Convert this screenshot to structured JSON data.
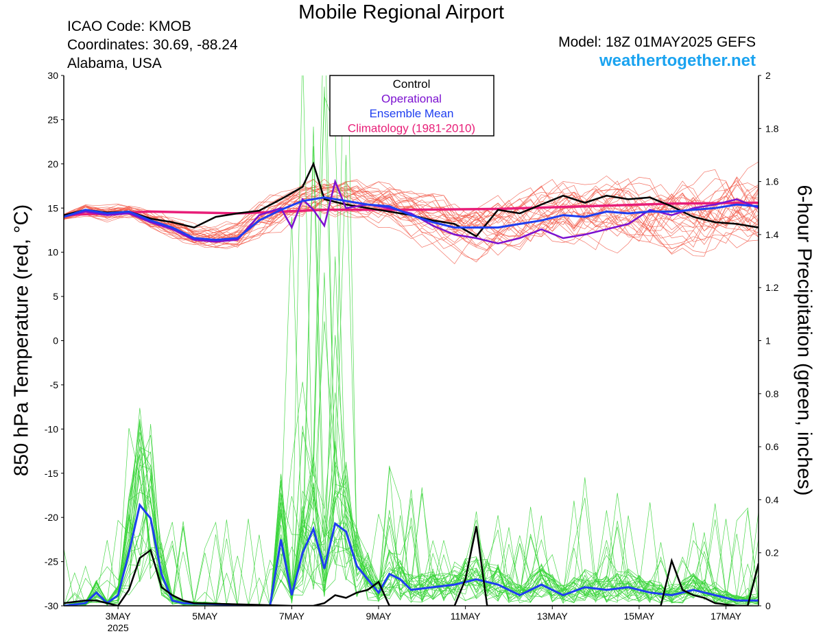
{
  "header": {
    "title": "Mobile Regional Airport",
    "icao": "ICAO Code: KMOB",
    "coords": "Coordinates: 30.69, -88.24",
    "region": "Alabama, USA",
    "model": "Model: 18Z 01MAY2025 GEFS",
    "site": "weathertogether.net"
  },
  "colors": {
    "ensemble_temp": "#f25a4a",
    "ensemble_precip": "#36d436",
    "control": "#000000",
    "operational": "#7b10d0",
    "mean": "#1e3ef0",
    "climatology": "#e81e78",
    "site": "#1aa3f0"
  },
  "chart_data": {
    "type": "line",
    "title": "Mobile Regional Airport",
    "ylabel": "850 hPa Temperature (red, °C)",
    "y2label": "6-hour Precipitation (green, inches)",
    "ylim": [
      -30,
      30
    ],
    "y2lim": [
      0,
      2
    ],
    "yticks": [
      30,
      25,
      20,
      15,
      10,
      5,
      0,
      -5,
      -10,
      -15,
      -20,
      -25,
      -30
    ],
    "y2ticks": [
      2,
      1.8,
      1.6,
      1.4,
      1.2,
      1,
      0.8,
      0.6,
      0.4,
      0.2,
      0
    ],
    "xticks": [
      {
        "day": 3,
        "label": "3MAY",
        "sublabel": "2025"
      },
      {
        "day": 5,
        "label": "5MAY",
        "sublabel": ""
      },
      {
        "day": 7,
        "label": "7MAY",
        "sublabel": ""
      },
      {
        "day": 9,
        "label": "9MAY",
        "sublabel": ""
      },
      {
        "day": 11,
        "label": "11MAY",
        "sublabel": ""
      },
      {
        "day": 13,
        "label": "13MAY",
        "sublabel": ""
      },
      {
        "day": 15,
        "label": "15MAY",
        "sublabel": ""
      },
      {
        "day": 17,
        "label": "17MAY",
        "sublabel": ""
      }
    ],
    "xlim": [
      1.75,
      17.75
    ],
    "legend": {
      "placement": "top-center",
      "entries": [
        {
          "label": "Control",
          "color": "#000000"
        },
        {
          "label": "Operational",
          "color": "#7b10d0"
        },
        {
          "label": "Ensemble Mean",
          "color": "#1e3ef0"
        },
        {
          "label": "Climatology (1981-2010)",
          "color": "#e81e78"
        }
      ]
    },
    "series": {
      "control_temp": {
        "days": [
          1.75,
          2.25,
          2.75,
          3.25,
          3.75,
          4.25,
          4.75,
          5.25,
          5.75,
          6.25,
          6.75,
          7.25,
          7.5,
          7.75,
          8.25,
          8.75,
          9.25,
          9.75,
          10.25,
          10.75,
          11.25,
          11.75,
          12.25,
          12.75,
          13.25,
          13.75,
          14.25,
          14.75,
          15.25,
          15.75,
          16.25,
          16.75,
          17.25,
          17.75
        ],
        "values": [
          14.2,
          14.8,
          14.5,
          14.6,
          13.8,
          13.4,
          12.8,
          14.0,
          14.4,
          14.7,
          16.0,
          17.4,
          20.0,
          16.0,
          15.4,
          15.0,
          14.6,
          14.2,
          13.6,
          13.2,
          11.8,
          14.8,
          14.4,
          15.4,
          16.4,
          15.6,
          16.4,
          16.0,
          16.2,
          15.2,
          14.0,
          13.4,
          13.2,
          12.8
        ]
      },
      "operational_temp": {
        "days": [
          1.75,
          2.25,
          2.75,
          3.25,
          3.75,
          4.25,
          4.75,
          5.25,
          5.75,
          6.25,
          6.75,
          7.0,
          7.25,
          7.5,
          7.75,
          8.0,
          8.25,
          8.75,
          9.25,
          9.75,
          10.25,
          10.75,
          11.25,
          11.75,
          12.25,
          12.75,
          13.25,
          13.75,
          14.25,
          14.75,
          15.25,
          15.75,
          16.25,
          16.75,
          17.25,
          17.75
        ],
        "values": [
          14.0,
          14.6,
          14.2,
          14.4,
          13.4,
          12.6,
          11.4,
          11.2,
          11.4,
          14.2,
          15.0,
          12.8,
          16.0,
          14.8,
          13.0,
          18.0,
          15.0,
          15.4,
          15.0,
          14.4,
          13.0,
          12.0,
          11.6,
          11.0,
          11.6,
          12.6,
          11.6,
          12.0,
          12.6,
          13.2,
          14.8,
          14.2,
          15.0,
          15.4,
          16.0,
          15.0
        ]
      },
      "mean_temp": {
        "days": [
          1.75,
          2.25,
          2.75,
          3.25,
          3.75,
          4.25,
          4.75,
          5.25,
          5.75,
          6.25,
          6.75,
          7.25,
          7.75,
          8.25,
          8.75,
          9.25,
          9.75,
          10.25,
          10.75,
          11.25,
          11.75,
          12.25,
          12.75,
          13.25,
          13.75,
          14.25,
          14.75,
          15.25,
          15.75,
          16.25,
          16.75,
          17.25,
          17.75
        ],
        "values": [
          14.0,
          14.8,
          14.4,
          14.6,
          13.6,
          12.8,
          11.6,
          11.4,
          11.6,
          13.6,
          14.8,
          15.8,
          16.2,
          15.8,
          15.4,
          15.2,
          14.2,
          13.4,
          12.8,
          12.8,
          12.8,
          13.2,
          13.6,
          14.2,
          14.0,
          14.6,
          14.4,
          14.6,
          14.6,
          14.8,
          15.0,
          15.4,
          15.2
        ]
      },
      "climatology_temp": {
        "days": [
          1.75,
          3.75,
          5.75,
          7.75,
          9.75,
          11.75,
          13.75,
          15.75,
          17.75
        ],
        "values": [
          14.2,
          14.6,
          14.4,
          14.8,
          14.8,
          14.9,
          15.2,
          15.5,
          15.6
        ]
      },
      "control_precip": {
        "days": [
          1.75,
          2.25,
          2.5,
          2.75,
          3.0,
          3.25,
          3.5,
          3.75,
          4.0,
          4.25,
          4.5,
          4.75,
          7.0,
          7.5,
          7.75,
          8.0,
          8.25,
          8.5,
          8.75,
          9.0,
          9.25,
          9.5,
          10.75,
          11.0,
          11.25,
          11.5,
          15.5,
          15.75,
          16.0,
          16.25,
          16.5,
          16.75,
          17.25,
          17.5,
          17.75
        ],
        "values": [
          0.01,
          0.02,
          0.02,
          0.01,
          0.0,
          0.06,
          0.18,
          0.21,
          0.07,
          0.04,
          0.02,
          0.01,
          0.0,
          0.0,
          0.01,
          0.04,
          0.03,
          0.05,
          0.06,
          0.09,
          0.0,
          0.0,
          0.0,
          0.1,
          0.3,
          0.0,
          0.0,
          0.17,
          0.06,
          0.04,
          0.03,
          0.01,
          0.0,
          0.0,
          0.16
        ]
      },
      "mean_precip": {
        "days": [
          1.75,
          2.25,
          2.5,
          2.75,
          3.0,
          3.25,
          3.5,
          3.75,
          4.0,
          4.25,
          4.5,
          6.5,
          6.75,
          7.0,
          7.25,
          7.5,
          7.75,
          8.0,
          8.25,
          8.5,
          8.75,
          9.0,
          9.25,
          9.5,
          9.75,
          10.25,
          10.75,
          11.25,
          11.75,
          12.25,
          12.75,
          13.25,
          13.75,
          14.25,
          14.75,
          15.25,
          15.75,
          16.25,
          16.75,
          17.25,
          17.75
        ],
        "values": [
          0.0,
          0.01,
          0.05,
          0.01,
          0.04,
          0.2,
          0.38,
          0.33,
          0.12,
          0.02,
          0.01,
          0.0,
          0.25,
          0.04,
          0.2,
          0.29,
          0.14,
          0.31,
          0.28,
          0.15,
          0.1,
          0.05,
          0.12,
          0.1,
          0.06,
          0.07,
          0.08,
          0.1,
          0.08,
          0.04,
          0.08,
          0.04,
          0.07,
          0.06,
          0.07,
          0.05,
          0.04,
          0.06,
          0.04,
          0.02,
          0.02
        ]
      }
    }
  }
}
